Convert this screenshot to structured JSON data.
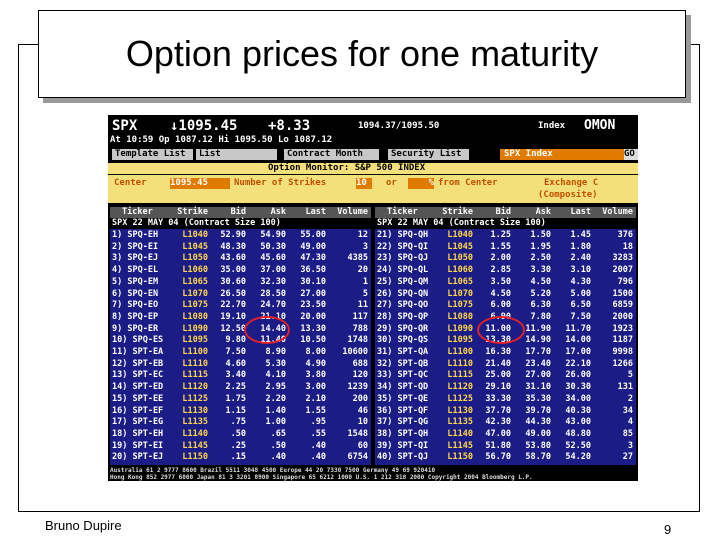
{
  "slide": {
    "title": "Option prices for one maturity",
    "author": "Bruno Dupire",
    "page_number": "9"
  },
  "screen": {
    "quote": {
      "ticker": "SPX",
      "price": "↓1095.45",
      "change": "+8.33",
      "bid_ask": "1094.37/1095.50",
      "market": "Index",
      "function": "OMON"
    },
    "session": "At 10:59  Op 1087.12  Hi 1095.50  Lo 1087.12",
    "menu": [
      "Template List",
      "List",
      "Contract Month",
      "Security List"
    ],
    "security": "SPX Index",
    "go": "GO",
    "monitor_title": "Option Monitor: S&P 500 INDEX",
    "controls": {
      "center_label": "Center",
      "center_value": "1095.45",
      "strikes_label": "Number of Strikes",
      "strikes_value": "10",
      "or": "or",
      "pct": "%",
      "from_center": "from Center",
      "exchange": "Exchange C",
      "composite": "(Composite)"
    },
    "columns": [
      "Ticker",
      "Strike",
      "Bid",
      "Ask",
      "Last",
      "Volume"
    ],
    "calls": {
      "contract": "SPX 22 MAY 04  (Contract Size 100)",
      "rows": [
        [
          "1) SPQ-EH",
          "L1040",
          "52.90",
          "54.90",
          "55.00",
          "12"
        ],
        [
          "2) SPQ-EI",
          "L1045",
          "48.30",
          "50.30",
          "49.00",
          "3"
        ],
        [
          "3) SPQ-EJ",
          "L1050",
          "43.60",
          "45.60",
          "47.30",
          "4385"
        ],
        [
          "4) SPQ-EL",
          "L1060",
          "35.00",
          "37.00",
          "36.50",
          "20"
        ],
        [
          "5) SPQ-EM",
          "L1065",
          "30.60",
          "32.30",
          "30.10",
          "1"
        ],
        [
          "6) SPQ-EN",
          "L1070",
          "26.50",
          "28.50",
          "27.00",
          "5"
        ],
        [
          "7) SPQ-EO",
          "L1075",
          "22.70",
          "24.70",
          "23.50",
          "11"
        ],
        [
          "8) SPQ-EP",
          "L1080",
          "19.10",
          "21.10",
          "20.00",
          "117"
        ],
        [
          "9) SPQ-ER",
          "L1090",
          "12.50",
          "14.40",
          "13.30",
          "788"
        ],
        [
          "10) SPQ-ES",
          "L1095",
          "9.80",
          "11.40",
          "10.50",
          "1748"
        ],
        [
          "11) SPT-EA",
          "L1100",
          "7.50",
          "8.90",
          "8.00",
          "10600"
        ],
        [
          "12) SPT-EB",
          "L1110",
          "4.60",
          "5.30",
          "4.90",
          "688"
        ],
        [
          "13) SPT-EC",
          "L1115",
          "3.40",
          "4.10",
          "3.80",
          "120"
        ],
        [
          "14) SPT-ED",
          "L1120",
          "2.25",
          "2.95",
          "3.00",
          "1239"
        ],
        [
          "15) SPT-EE",
          "L1125",
          "1.75",
          "2.20",
          "2.10",
          "200"
        ],
        [
          "16) SPT-EF",
          "L1130",
          "1.15",
          "1.40",
          "1.55",
          "46"
        ],
        [
          "17) SPT-EG",
          "L1135",
          ".75",
          "1.00",
          ".95",
          "10"
        ],
        [
          "18) SPT-EH",
          "L1140",
          ".50",
          ".65",
          ".55",
          "1548"
        ],
        [
          "19) SPT-EI",
          "L1145",
          ".25",
          ".50",
          ".40",
          "60"
        ],
        [
          "20) SPT-EJ",
          "L1150",
          ".15",
          ".40",
          ".40",
          "6754"
        ]
      ]
    },
    "puts": {
      "contract": "SPX 22 MAY 04  (Contract Size 100)",
      "rows": [
        [
          "21) SPQ-QH",
          "L1040",
          "1.25",
          "1.50",
          "1.45",
          "376"
        ],
        [
          "22) SPQ-QI",
          "L1045",
          "1.55",
          "1.95",
          "1.80",
          "18"
        ],
        [
          "23) SPQ-QJ",
          "L1050",
          "2.00",
          "2.50",
          "2.40",
          "3283"
        ],
        [
          "24) SPQ-QL",
          "L1060",
          "2.85",
          "3.30",
          "3.10",
          "2007"
        ],
        [
          "25) SPQ-QM",
          "L1065",
          "3.50",
          "4.50",
          "4.30",
          "796"
        ],
        [
          "26) SPQ-QN",
          "L1070",
          "4.50",
          "5.20",
          "5.00",
          "1500"
        ],
        [
          "27) SPQ-QO",
          "L1075",
          "6.00",
          "6.30",
          "6.50",
          "6859"
        ],
        [
          "28) SPQ-QP",
          "L1080",
          "6.90",
          "7.80",
          "7.50",
          "2000"
        ],
        [
          "29) SPQ-QR",
          "L1090",
          "11.00",
          "11.90",
          "11.70",
          "1923"
        ],
        [
          "30) SPQ-QS",
          "L1095",
          "13.30",
          "14.90",
          "14.00",
          "1187"
        ],
        [
          "31) SPT-QA",
          "L1100",
          "16.30",
          "17.70",
          "17.00",
          "9998"
        ],
        [
          "32) SPT-QB",
          "L1110",
          "21.40",
          "23.40",
          "22.10",
          "1266"
        ],
        [
          "33) SPT-QC",
          "L1115",
          "25.00",
          "27.00",
          "26.00",
          "5"
        ],
        [
          "34) SPT-QD",
          "L1120",
          "29.10",
          "31.10",
          "30.30",
          "131"
        ],
        [
          "35) SPT-QE",
          "L1125",
          "33.30",
          "35.30",
          "34.00",
          "2"
        ],
        [
          "36) SPT-QF",
          "L1130",
          "37.70",
          "39.70",
          "40.30",
          "34"
        ],
        [
          "37) SPT-QG",
          "L1135",
          "42.30",
          "44.30",
          "43.00",
          "4"
        ],
        [
          "38) SPT-QH",
          "L1140",
          "47.00",
          "49.00",
          "48.80",
          "85"
        ],
        [
          "39) SPT-QI",
          "L1145",
          "51.80",
          "53.80",
          "52.50",
          "3"
        ],
        [
          "40) SPT-QJ",
          "L1150",
          "56.70",
          "58.70",
          "54.20",
          "27"
        ]
      ]
    },
    "footer": [
      "Australia 61 2 9777 8600  Brazil 5511 3048 4500  Europe 44 20 7330 7500  Germany 49 69 920410",
      "Hong Kong 852 2977 6000 Japan 81 3 3201 8900 Singapore 65 6212 1000 U.S. 1 212 318 2000 Copyright 2004 Bloomberg L.P."
    ]
  }
}
